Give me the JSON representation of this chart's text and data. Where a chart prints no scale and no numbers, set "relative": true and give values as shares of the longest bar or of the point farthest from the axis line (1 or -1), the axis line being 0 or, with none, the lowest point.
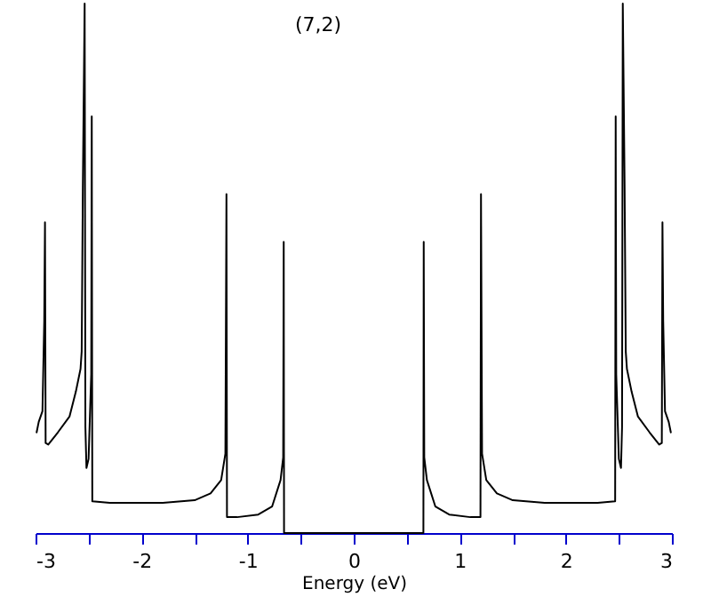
{
  "chart_data": {
    "type": "line",
    "title": "(7,2)",
    "xlabel": "Energy (eV)",
    "relative": true,
    "xlim": [
      -3,
      3
    ],
    "xticks": [
      -3,
      {
        "value": -2.5,
        "label": null
      },
      -2,
      {
        "value": -1.5,
        "label": null
      },
      -1,
      {
        "value": -0.5,
        "label": null
      },
      0,
      {
        "value": 0.5,
        "label": null
      },
      1,
      {
        "value": 1.5,
        "label": null
      },
      2,
      {
        "value": 2.5,
        "label": null
      },
      3
    ],
    "marker": "none",
    "line_style": "solid",
    "series": [
      {
        "color": "#000000",
        "x": [
          -2.99,
          -2.97,
          -2.935,
          -2.918,
          -2.911,
          -2.905,
          -2.88,
          -2.79,
          -2.68,
          -2.62,
          -2.576,
          -2.565,
          -2.554,
          -2.537,
          -2.53,
          -2.52,
          -2.5,
          -2.475,
          -2.47,
          -2.465,
          -2.3,
          -1.8,
          -1.5,
          -1.35,
          -1.25,
          -1.21,
          -1.2,
          -1.195,
          -1.1,
          -0.9,
          -0.77,
          -0.69,
          -0.665,
          -0.66,
          -0.657,
          0.657,
          0.66,
          0.665,
          0.69,
          0.77,
          0.9,
          1.1,
          1.195,
          1.2,
          1.21,
          1.25,
          1.35,
          1.5,
          1.8,
          2.3,
          2.465,
          2.47,
          2.475,
          2.5,
          2.52,
          2.53,
          2.537,
          2.554,
          2.565,
          2.576,
          2.62,
          2.68,
          2.79,
          2.88,
          2.905,
          2.911,
          2.918,
          2.935,
          2.97,
          2.99
        ],
        "values": [
          0.19,
          0.21,
          0.23,
          0.4,
          0.587,
          0.17,
          0.167,
          0.19,
          0.22,
          0.267,
          0.31,
          0.343,
          0.655,
          1,
          0.2,
          0.123,
          0.14,
          0.3,
          0.787,
          0.06,
          0.057,
          0.057,
          0.062,
          0.075,
          0.1,
          0.15,
          0.64,
          0.03,
          0.03,
          0.035,
          0.05,
          0.1,
          0.143,
          0.55,
          0,
          0,
          0.55,
          0.143,
          0.1,
          0.05,
          0.035,
          0.03,
          0.03,
          0.64,
          0.15,
          0.1,
          0.075,
          0.062,
          0.057,
          0.057,
          0.06,
          0.787,
          0.3,
          0.14,
          0.123,
          0.2,
          1,
          0.655,
          0.343,
          0.31,
          0.267,
          0.22,
          0.19,
          0.167,
          0.17,
          0.587,
          0.4,
          0.23,
          0.21,
          0.19
        ]
      }
    ]
  }
}
